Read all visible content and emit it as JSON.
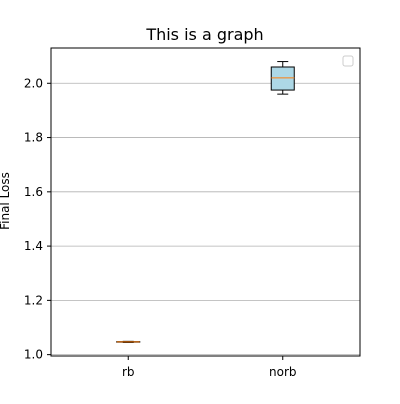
{
  "chart_data": {
    "type": "box",
    "title": "This is a graph",
    "xlabel": "",
    "ylabel": "Final Loss",
    "categories": [
      "rb",
      "norb"
    ],
    "ylim": [
      0.995,
      2.13
    ],
    "yticks": [
      1.0,
      1.2,
      1.4,
      1.6,
      1.8,
      2.0
    ],
    "ytick_labels": [
      "1.0",
      "1.2",
      "1.4",
      "1.6",
      "1.8",
      "2.0"
    ],
    "grid": "horizontal",
    "legend": "top-right (empty)",
    "boxes": [
      {
        "name": "rb",
        "whisker_low": 1.045,
        "q1": 1.046,
        "median": 1.047,
        "q3": 1.048,
        "whisker_high": 1.049
      },
      {
        "name": "norb",
        "whisker_low": 1.96,
        "q1": 1.975,
        "median": 2.02,
        "q3": 2.06,
        "whisker_high": 2.08
      }
    ],
    "colors": {
      "box_fill": "#add8e6",
      "median": "#ff7f0e",
      "edge": "#000000",
      "grid": "#b0b0b0"
    }
  }
}
